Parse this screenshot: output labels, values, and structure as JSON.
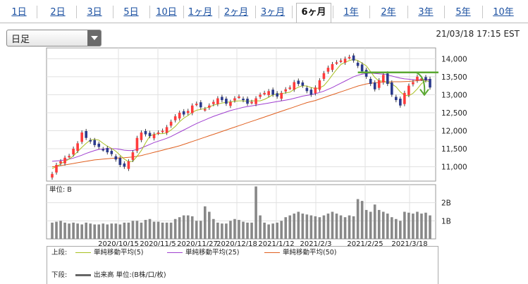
{
  "tabs": [
    {
      "label": "1日",
      "active": false
    },
    {
      "label": "2日",
      "active": false
    },
    {
      "label": "3日",
      "active": false
    },
    {
      "label": "5日",
      "active": false
    },
    {
      "label": "10日",
      "active": false
    },
    {
      "label": "1ヶ月",
      "active": false
    },
    {
      "label": "2ヶ月",
      "active": false
    },
    {
      "label": "3ヶ月",
      "active": false
    },
    {
      "label": "6ヶ月",
      "active": true
    },
    {
      "label": "1年",
      "active": false
    },
    {
      "label": "2年",
      "active": false
    },
    {
      "label": "3年",
      "active": false
    },
    {
      "label": "5年",
      "active": false
    },
    {
      "label": "10年",
      "active": false
    }
  ],
  "period_select": {
    "value": "日足"
  },
  "timestamp": "21/03/18 17:15 EST",
  "chart_data": [
    {
      "type": "candlestick",
      "y_ticks": [
        "14,000",
        "13,500",
        "13,000",
        "12,500",
        "12,000",
        "11,500",
        "11,000"
      ],
      "ylim": [
        10600,
        14300
      ],
      "x_ticks": [
        "2020/10/15",
        "2020/11/5",
        "2020/11/27",
        "2020/12/18",
        "2021/1/12",
        "2021/2/3",
        "2021/2/25",
        "2021/3/18"
      ],
      "resistance_level": 13620,
      "close": [
        10800,
        11050,
        11150,
        11250,
        11300,
        11500,
        11650,
        11950,
        11800,
        11700,
        11600,
        11550,
        11480,
        11400,
        11350,
        11200,
        11050,
        11000,
        11150,
        11400,
        11800,
        11950,
        11900,
        11850,
        11900,
        11950,
        12000,
        12100,
        12250,
        12400,
        12500,
        12450,
        12550,
        12700,
        12750,
        12650,
        12600,
        12700,
        12800,
        12900,
        12850,
        12750,
        12800,
        12900,
        12950,
        12850,
        12750,
        12800,
        12900,
        13000,
        13050,
        13100,
        13000,
        12950,
        13050,
        13150,
        13200,
        13350,
        13300,
        13250,
        13100,
        13000,
        13200,
        13400,
        13600,
        13750,
        13850,
        13900,
        13950,
        14000,
        14050,
        13950,
        13800,
        13650,
        13500,
        13300,
        13150,
        13400,
        13550,
        13300,
        13000,
        12850,
        12700,
        13050,
        13250,
        13350,
        13500,
        13450,
        13400,
        13200
      ],
      "ma5": [
        10950,
        11000,
        11080,
        11150,
        11210,
        11300,
        11420,
        11540,
        11650,
        11740,
        11760,
        11740,
        11650,
        11570,
        11510,
        11430,
        11320,
        11210,
        11140,
        11150,
        11290,
        11450,
        11660,
        11850,
        11900,
        11920,
        11920,
        11940,
        12020,
        12120,
        12250,
        12350,
        12420,
        12510,
        12570,
        12590,
        12620,
        12660,
        12710,
        12740,
        12770,
        12790,
        12800,
        12820,
        12830,
        12830,
        12820,
        12830,
        12830,
        12830,
        12870,
        12930,
        13000,
        13010,
        13030,
        13050,
        13070,
        13150,
        13210,
        13250,
        13240,
        13200,
        13170,
        13190,
        13250,
        13390,
        13550,
        13700,
        13840,
        13900,
        13950,
        13980,
        13950,
        13880,
        13800,
        13640,
        13480,
        13380,
        13380,
        13340,
        13300,
        13220,
        13080,
        12980,
        12970,
        13040,
        13160,
        13310,
        13390,
        13360
      ],
      "ma25": [
        11150,
        11160,
        11170,
        11190,
        11210,
        11240,
        11280,
        11320,
        11370,
        11410,
        11450,
        11480,
        11490,
        11500,
        11500,
        11500,
        11480,
        11460,
        11450,
        11450,
        11480,
        11520,
        11570,
        11620,
        11670,
        11710,
        11750,
        11790,
        11840,
        11900,
        11960,
        12020,
        12080,
        12140,
        12200,
        12250,
        12300,
        12350,
        12400,
        12440,
        12480,
        12520,
        12560,
        12590,
        12620,
        12650,
        12670,
        12690,
        12710,
        12730,
        12750,
        12770,
        12790,
        12810,
        12830,
        12850,
        12870,
        12900,
        12930,
        12960,
        12980,
        13000,
        13030,
        13060,
        13100,
        13150,
        13200,
        13260,
        13320,
        13380,
        13440,
        13500,
        13540,
        13570,
        13590,
        13600,
        13590,
        13580,
        13570,
        13550,
        13520,
        13490,
        13460,
        13440,
        13430,
        13420,
        13420,
        13420,
        13420,
        13410
      ],
      "ma50": [
        11000,
        11010,
        11030,
        11050,
        11070,
        11090,
        11110,
        11130,
        11150,
        11170,
        11190,
        11200,
        11210,
        11220,
        11230,
        11240,
        11245,
        11250,
        11260,
        11270,
        11290,
        11310,
        11340,
        11370,
        11400,
        11430,
        11460,
        11490,
        11520,
        11550,
        11580,
        11620,
        11660,
        11700,
        11740,
        11780,
        11820,
        11860,
        11900,
        11940,
        11980,
        12020,
        12060,
        12100,
        12140,
        12180,
        12220,
        12260,
        12300,
        12340,
        12380,
        12420,
        12460,
        12500,
        12540,
        12580,
        12620,
        12660,
        12700,
        12740,
        12780,
        12810,
        12840,
        12880,
        12920,
        12960,
        13000,
        13040,
        13080,
        13120,
        13160,
        13200,
        13240,
        13270,
        13300,
        13320,
        13330,
        13340,
        13350,
        13355,
        13360,
        13360,
        13360,
        13365,
        13370,
        13380,
        13390,
        13400,
        13410,
        13420
      ]
    },
    {
      "type": "bar",
      "title": "単位: B",
      "y_ticks": [
        "2B",
        "1B"
      ],
      "ylim": [
        0,
        3
      ],
      "values": [
        0.9,
        0.95,
        1.0,
        0.9,
        0.85,
        0.9,
        0.85,
        0.8,
        0.9,
        0.85,
        0.8,
        0.8,
        0.85,
        0.8,
        0.85,
        0.85,
        0.8,
        0.9,
        0.9,
        1.0,
        1.0,
        0.9,
        1.05,
        1.1,
        0.95,
        0.95,
        0.9,
        0.9,
        0.9,
        1.1,
        1.2,
        1.3,
        1.3,
        1.25,
        1.0,
        1.0,
        1.8,
        1.5,
        1.1,
        0.9,
        0.85,
        0.85,
        1.0,
        1.1,
        1.05,
        0.95,
        0.9,
        0.9,
        2.9,
        1.3,
        0.9,
        0.8,
        0.85,
        0.9,
        1.0,
        1.2,
        1.3,
        1.4,
        1.5,
        1.4,
        1.35,
        1.3,
        1.25,
        1.2,
        1.3,
        1.4,
        1.5,
        1.4,
        1.3,
        1.2,
        1.3,
        1.25,
        2.2,
        2.1,
        1.6,
        1.5,
        1.9,
        1.6,
        1.5,
        1.4,
        1.2,
        1.1,
        1.0,
        1.5,
        1.45,
        1.4,
        1.5,
        1.4,
        1.45,
        1.3
      ]
    }
  ],
  "legend": {
    "upper_label": "上段:",
    "lower_label": "下段:",
    "items": [
      {
        "label": "単純移動平均(5)",
        "color": "#a8c020"
      },
      {
        "label": "単純移動平均(25)",
        "color": "#a040d0"
      },
      {
        "label": "単純移動平均(50)",
        "color": "#e06020"
      }
    ],
    "volume_label": "出来高 単位:(B株/口/枚)"
  }
}
